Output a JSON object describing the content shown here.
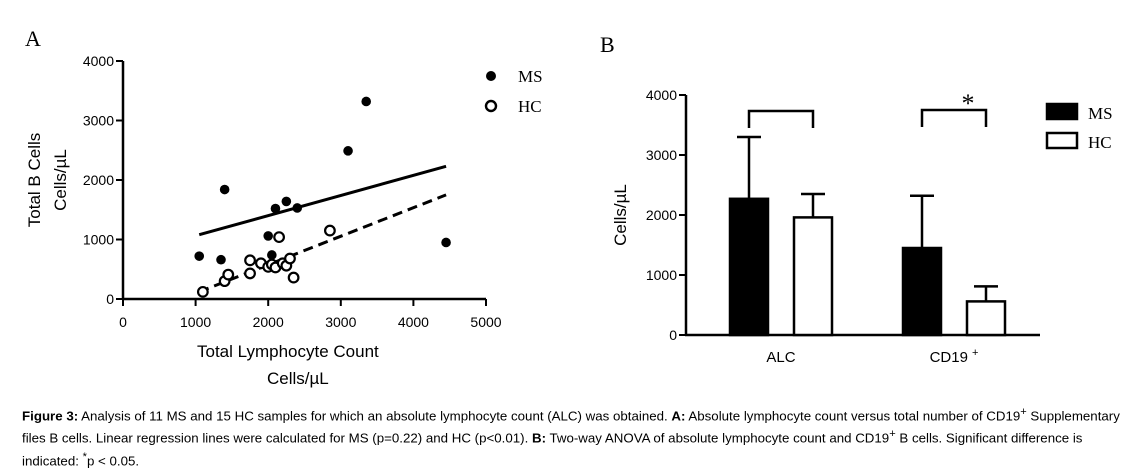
{
  "panel_a": {
    "label": "A",
    "legend": [
      {
        "name": "MS",
        "marker": "filled-circle"
      },
      {
        "name": "HC",
        "marker": "open-circle"
      }
    ],
    "xlabel_line1": "Total  Lymphocyte Count",
    "xlabel_line2": "Cells/µL",
    "ylabel_line1": "Total B Cells",
    "ylabel_line2": "Cells/µL"
  },
  "panel_b": {
    "label": "B",
    "ylabel": "Cells/µL",
    "legend": [
      {
        "name": "MS",
        "fill": "#000000"
      },
      {
        "name": "HC",
        "fill": "#ffffff"
      }
    ],
    "significance_marker": "*"
  },
  "caption": {
    "fig_label": "Figure 3:",
    "part1": " Analysis of 11 MS and 15 HC samples for which an absolute lymphocyte count (ALC) was obtained. ",
    "a_label": "A:",
    "part2": " Absolute lymphocyte count versus total number of CD19",
    "sup1": "+",
    "part3": " Supplementary files B cells. Linear regression lines were calculated for MS (p=0.22) and HC (p<0.01). ",
    "b_label": "B:",
    "part4": " Two-way ANOVA of absolute lymphocyte count and CD19",
    "sup2": "+",
    "part5": " B cells. Significant difference is indicated: ",
    "sup3": "*",
    "part6": "p < 0.05."
  },
  "chart_data": [
    {
      "type": "scatter",
      "panel": "A",
      "xlabel": "Total Lymphocyte Count Cells/µL",
      "ylabel": "Total B Cells Cells/µL",
      "xlim": [
        0,
        5000
      ],
      "ylim": [
        0,
        4000
      ],
      "xticks": [
        0,
        1000,
        2000,
        3000,
        4000,
        5000
      ],
      "yticks": [
        0,
        1000,
        2000,
        3000,
        4000
      ],
      "legend_position": "top-right",
      "series": [
        {
          "name": "MS",
          "marker": "filled",
          "points": [
            [
              1050,
              720
            ],
            [
              1350,
              660
            ],
            [
              1400,
              1840
            ],
            [
              2000,
              1060
            ],
            [
              2050,
              740
            ],
            [
              2100,
              1520
            ],
            [
              2250,
              1640
            ],
            [
              2400,
              1530
            ],
            [
              3100,
              2490
            ],
            [
              3350,
              3320
            ],
            [
              4450,
              950
            ]
          ],
          "regression": {
            "style": "solid",
            "x": [
              1050,
              4450
            ],
            "y": [
              1080,
              2230
            ]
          }
        },
        {
          "name": "HC",
          "marker": "open",
          "points": [
            [
              1100,
              120
            ],
            [
              1400,
              300
            ],
            [
              1450,
              410
            ],
            [
              1750,
              430
            ],
            [
              1750,
              650
            ],
            [
              1900,
              600
            ],
            [
              2000,
              540
            ],
            [
              2050,
              580
            ],
            [
              2100,
              530
            ],
            [
              2150,
              1040
            ],
            [
              2200,
              600
            ],
            [
              2250,
              560
            ],
            [
              2300,
              680
            ],
            [
              2350,
              360
            ],
            [
              2850,
              1150
            ]
          ],
          "regression": {
            "style": "dashed",
            "x": [
              1050,
              4450
            ],
            "y": [
              120,
              1750
            ]
          }
        }
      ]
    },
    {
      "type": "bar",
      "panel": "B",
      "ylabel": "Cells/µL",
      "ylim": [
        0,
        4000
      ],
      "yticks": [
        0,
        1000,
        2000,
        3000,
        4000
      ],
      "categories": [
        "ALC",
        "CD19 +"
      ],
      "category_superscripts": [
        "",
        "+"
      ],
      "legend_position": "top-right",
      "series": [
        {
          "name": "MS",
          "values": [
            2270,
            1450
          ],
          "error": [
            1030,
            870
          ],
          "fill": "#000000"
        },
        {
          "name": "HC",
          "values": [
            1960,
            560
          ],
          "error": [
            390,
            250
          ],
          "fill": "#ffffff"
        }
      ],
      "significance": [
        {
          "category": "ALC",
          "marker": ""
        },
        {
          "category": "CD19 +",
          "marker": "*"
        }
      ]
    }
  ]
}
